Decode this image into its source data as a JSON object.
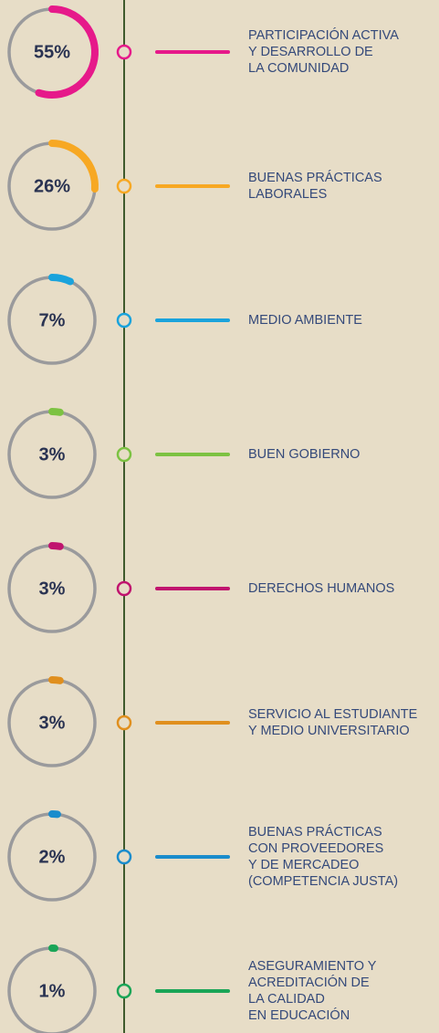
{
  "chart_data": {
    "type": "radial",
    "categories": [
      "PARTICIPACIÓN ACTIVA\nY DESARROLLO DE\nLA COMUNIDAD",
      "BUENAS PRÁCTICAS\nLABORALES",
      "MEDIO AMBIENTE",
      "BUEN GOBIERNO",
      "DERECHOS HUMANOS",
      "SERVICIO AL ESTUDIANTE\nY MEDIO UNIVERSITARIO",
      "BUENAS PRÁCTICAS\nCON PROVEEDORES\nY DE MERCADEO\n(COMPETENCIA JUSTA)",
      "ASEGURAMIENTO Y\nACREDITACIÓN DE\nLA CALIDAD\nEN EDUCACIÓN"
    ],
    "values": [
      55,
      26,
      7,
      3,
      3,
      3,
      2,
      1
    ],
    "value_labels": [
      "55%",
      "26%",
      "7%",
      "3%",
      "3%",
      "3%",
      "2%",
      "1%"
    ],
    "colors": [
      "#e6198a",
      "#f7a823",
      "#1aa3dc",
      "#7cc242",
      "#c0146e",
      "#e08f1e",
      "#1a8ccc",
      "#1aa557"
    ],
    "ylim": [
      0,
      100
    ]
  }
}
